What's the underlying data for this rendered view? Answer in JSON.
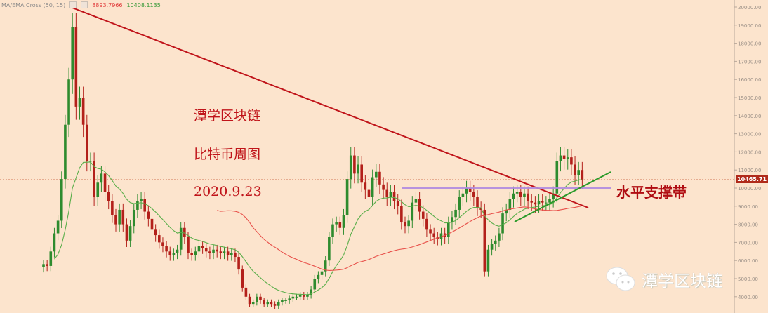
{
  "legend": {
    "indicator": "MA/EMA Cross (50, 15)",
    "value_slow": "8893.7966",
    "value_fast": "10408.1135"
  },
  "annotations": {
    "title": "潭学区块链",
    "subtitle": "比特币周图",
    "date": "2020.9.23",
    "support_label": "水平支撑带"
  },
  "watermark": {
    "icon": "wechat-icon",
    "text": "潭学区块链"
  },
  "colors": {
    "background": "#fce4cd",
    "up": "#2e8b2e",
    "down": "#b3201a",
    "trendline": "#c0141a",
    "support": "#b08be0",
    "uptrend": "#2a9a2a",
    "ema_fast": "#5aae4a",
    "ma_slow": "#e8504a"
  },
  "chart_data": {
    "type": "candlestick",
    "interval": "weekly",
    "ylim": [
      3700,
      20300
    ],
    "yticks": [
      "20000.00",
      "19000.00",
      "18000.00",
      "17000.00",
      "16000.00",
      "15000.00",
      "14000.00",
      "13000.00",
      "12000.00",
      "11000.00",
      "10000.00",
      "9000.00",
      "8000.00",
      "7000.00",
      "6000.00",
      "5000.00",
      "4000.00"
    ],
    "last_price": "10465.71",
    "support_level": 10000,
    "indicators": [
      {
        "type": "EMA",
        "period": 15
      },
      {
        "type": "MA",
        "period": 50
      }
    ],
    "closes": [
      5800,
      5700,
      6500,
      7500,
      8200,
      10500,
      13500,
      16000,
      18900,
      14500,
      15000,
      13500,
      11500,
      11500,
      9500,
      10300,
      10800,
      9800,
      9300,
      8500,
      8000,
      8800,
      8000,
      7100,
      7900,
      8800,
      9300,
      9400,
      8700,
      8300,
      7700,
      7400,
      7000,
      6800,
      6500,
      6300,
      6400,
      6600,
      7800,
      7300,
      6400,
      6300,
      6500,
      6800,
      6700,
      6500,
      6400,
      6600,
      6500,
      6400,
      6500,
      6300,
      6400,
      6200,
      5500,
      4500,
      4000,
      3600,
      3700,
      4000,
      3800,
      3600,
      3700,
      3600,
      3500,
      3700,
      3800,
      3800,
      3900,
      4000,
      4000,
      4100,
      4000,
      4100,
      4400,
      5000,
      5200,
      5400,
      6000,
      7300,
      8000,
      8100,
      7800,
      8500,
      10500,
      11800,
      10800,
      11300,
      10300,
      9900,
      9500,
      10600,
      10900,
      10200,
      9900,
      9500,
      9800,
      9300,
      9000,
      8100,
      7900,
      8200,
      9200,
      9400,
      8700,
      8300,
      7700,
      7500,
      7300,
      7200,
      7500,
      7300,
      8100,
      8400,
      8800,
      9500,
      9700,
      10000,
      9800,
      9500,
      8900,
      8800,
      5400,
      6600,
      6900,
      7100,
      7500,
      8600,
      8800,
      9400,
      9700,
      9800,
      9500,
      9700,
      9300,
      9200,
      9100,
      9300,
      9200,
      9200,
      9400,
      9700,
      11500,
      11800,
      11600,
      11700,
      11300,
      10700,
      11000,
      10466
    ]
  }
}
